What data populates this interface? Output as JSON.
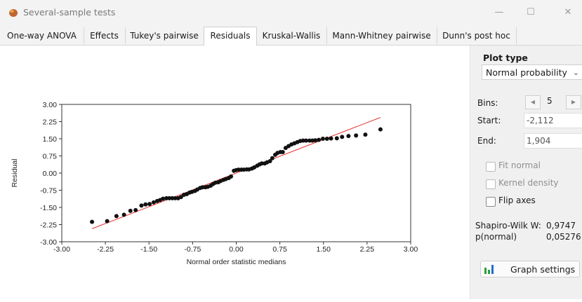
{
  "window": {
    "title": "Several-sample tests",
    "minimize": "—",
    "maximize": "☐",
    "close": "✕"
  },
  "tabs": [
    {
      "label": "One-way ANOVA",
      "active": false
    },
    {
      "label": "Effects",
      "active": false
    },
    {
      "label": "Tukey's pairwise",
      "active": false
    },
    {
      "label": "Residuals",
      "active": true
    },
    {
      "label": "Kruskal-Wallis",
      "active": false
    },
    {
      "label": "Mann-Whitney pairwise",
      "active": false
    },
    {
      "label": "Dunn's post hoc",
      "active": false
    }
  ],
  "panel": {
    "plot_type_label": "Plot type",
    "plot_type_value": "Normal probability",
    "bins_label": "Bins:",
    "bins_value": "5",
    "start_label": "Start:",
    "start_value": "-2,112",
    "end_label": "End:",
    "end_value": "1,904",
    "fit_normal": "Fit normal",
    "kernel_density": "Kernel density",
    "flip_axes": "Flip axes",
    "shapiro_label": "Shapiro-Wilk W:",
    "shapiro_value": "0,9747",
    "pnormal_label": "p(normal)",
    "pnormal_value": "0,05276",
    "graph_settings": "Graph settings",
    "accent_green": "#2e9e3e",
    "accent_blue": "#1f6fd1"
  },
  "chart_data": {
    "type": "scatter",
    "title": "",
    "xlabel": "Normal order statistic medians",
    "ylabel": "Residual",
    "xlim": [
      -3.0,
      3.0
    ],
    "ylim": [
      -3.0,
      3.0
    ],
    "xticks": [
      "-3.00",
      "-2.25",
      "-1.50",
      "-0.75",
      "0.00",
      "0.75",
      "1.50",
      "2.25",
      "3.00"
    ],
    "yticks": [
      "3.00",
      "2.25",
      "1.50",
      "0.75",
      "0.00",
      "-0.75",
      "-1.50",
      "-2.25",
      "-3.00"
    ],
    "points": [
      [
        -2.48,
        -2.13
      ],
      [
        -2.22,
        -2.1
      ],
      [
        -2.06,
        -1.88
      ],
      [
        -1.93,
        -1.82
      ],
      [
        -1.82,
        -1.65
      ],
      [
        -1.73,
        -1.62
      ],
      [
        -1.63,
        -1.42
      ],
      [
        -1.56,
        -1.37
      ],
      [
        -1.49,
        -1.35
      ],
      [
        -1.42,
        -1.28
      ],
      [
        -1.36,
        -1.22
      ],
      [
        -1.31,
        -1.18
      ],
      [
        -1.26,
        -1.12
      ],
      [
        -1.2,
        -1.1
      ],
      [
        -1.15,
        -1.1
      ],
      [
        -1.1,
        -1.1
      ],
      [
        -1.05,
        -1.1
      ],
      [
        -1.0,
        -1.1
      ],
      [
        -0.95,
        -1.05
      ],
      [
        -0.9,
        -0.95
      ],
      [
        -0.85,
        -0.92
      ],
      [
        -0.8,
        -0.85
      ],
      [
        -0.76,
        -0.82
      ],
      [
        -0.71,
        -0.78
      ],
      [
        -0.67,
        -0.72
      ],
      [
        -0.62,
        -0.65
      ],
      [
        -0.58,
        -0.62
      ],
      [
        -0.53,
        -0.62
      ],
      [
        -0.49,
        -0.6
      ],
      [
        -0.44,
        -0.55
      ],
      [
        -0.4,
        -0.48
      ],
      [
        -0.36,
        -0.42
      ],
      [
        -0.31,
        -0.4
      ],
      [
        -0.27,
        -0.35
      ],
      [
        -0.22,
        -0.3
      ],
      [
        -0.18,
        -0.26
      ],
      [
        -0.13,
        -0.22
      ],
      [
        -0.09,
        -0.15
      ],
      [
        -0.04,
        0.1
      ],
      [
        0.0,
        0.13
      ],
      [
        0.04,
        0.15
      ],
      [
        0.09,
        0.15
      ],
      [
        0.13,
        0.15
      ],
      [
        0.18,
        0.16
      ],
      [
        0.22,
        0.16
      ],
      [
        0.27,
        0.2
      ],
      [
        0.31,
        0.25
      ],
      [
        0.36,
        0.32
      ],
      [
        0.4,
        0.38
      ],
      [
        0.44,
        0.42
      ],
      [
        0.49,
        0.42
      ],
      [
        0.53,
        0.47
      ],
      [
        0.58,
        0.52
      ],
      [
        0.62,
        0.65
      ],
      [
        0.67,
        0.8
      ],
      [
        0.71,
        0.88
      ],
      [
        0.76,
        0.92
      ],
      [
        0.8,
        0.92
      ],
      [
        0.85,
        1.1
      ],
      [
        0.9,
        1.18
      ],
      [
        0.95,
        1.25
      ],
      [
        1.0,
        1.3
      ],
      [
        1.05,
        1.35
      ],
      [
        1.1,
        1.4
      ],
      [
        1.15,
        1.42
      ],
      [
        1.2,
        1.42
      ],
      [
        1.26,
        1.42
      ],
      [
        1.31,
        1.42
      ],
      [
        1.36,
        1.43
      ],
      [
        1.42,
        1.45
      ],
      [
        1.49,
        1.5
      ],
      [
        1.56,
        1.5
      ],
      [
        1.63,
        1.51
      ],
      [
        1.73,
        1.52
      ],
      [
        1.82,
        1.58
      ],
      [
        1.93,
        1.62
      ],
      [
        2.06,
        1.64
      ],
      [
        2.22,
        1.68
      ],
      [
        2.48,
        1.91
      ]
    ],
    "fit_line": {
      "x": [
        -2.48,
        2.48
      ],
      "y": [
        -2.43,
        2.43
      ],
      "color": "#e8332f"
    },
    "point_color": "#111111",
    "grid": false
  }
}
